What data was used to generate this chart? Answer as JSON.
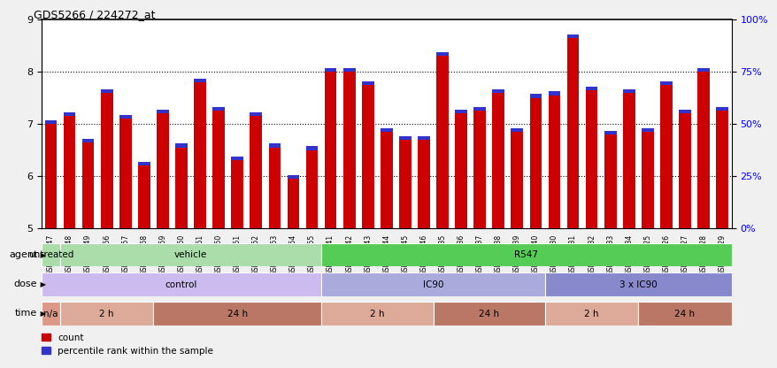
{
  "title": "GDS5266 / 224272_at",
  "samples": [
    "GSM386247",
    "GSM386248",
    "GSM386249",
    "GSM386256",
    "GSM386257",
    "GSM386258",
    "GSM386259",
    "GSM386260",
    "GSM386261",
    "GSM386250",
    "GSM386251",
    "GSM386252",
    "GSM386253",
    "GSM386254",
    "GSM386255",
    "GSM386241",
    "GSM386242",
    "GSM386243",
    "GSM386244",
    "GSM386245",
    "GSM386246",
    "GSM386235",
    "GSM386236",
    "GSM386237",
    "GSM386238",
    "GSM386239",
    "GSM386240",
    "GSM386230",
    "GSM386231",
    "GSM386232",
    "GSM386233",
    "GSM386234",
    "GSM386225",
    "GSM386226",
    "GSM386227",
    "GSM386228",
    "GSM386229"
  ],
  "red_values": [
    7.0,
    7.15,
    6.65,
    7.6,
    7.1,
    6.2,
    7.2,
    6.55,
    7.8,
    7.25,
    6.3,
    7.15,
    6.55,
    5.95,
    6.5,
    8.0,
    8.0,
    7.75,
    6.85,
    6.7,
    6.7,
    8.3,
    7.2,
    7.25,
    7.6,
    6.85,
    7.5,
    7.55,
    8.65,
    7.65,
    6.8,
    7.6,
    6.85,
    7.75,
    7.2,
    8.0,
    7.25
  ],
  "blue_heights": [
    0.07,
    0.07,
    0.07,
    0.07,
    0.07,
    0.07,
    0.07,
    0.07,
    0.07,
    0.07,
    0.07,
    0.07,
    0.07,
    0.07,
    0.07,
    0.07,
    0.07,
    0.07,
    0.07,
    0.07,
    0.07,
    0.07,
    0.07,
    0.07,
    0.07,
    0.07,
    0.07,
    0.07,
    0.07,
    0.07,
    0.07,
    0.07,
    0.07,
    0.07,
    0.07,
    0.07,
    0.07
  ],
  "ymin": 5.0,
  "ymax": 9.0,
  "yticks": [
    5,
    6,
    7,
    8,
    9
  ],
  "y2ticks": [
    0,
    25,
    50,
    75,
    100
  ],
  "y2labels": [
    "0%",
    "25%",
    "50%",
    "75%",
    "100%"
  ],
  "bar_color": "#cc0000",
  "blue_color": "#3333cc",
  "background_color": "#f0f0f0",
  "plot_bg_color": "#ffffff",
  "agent_row": {
    "segments": [
      {
        "text": "untreated",
        "start": 0,
        "end": 1,
        "color": "#aaddaa"
      },
      {
        "text": "vehicle",
        "start": 1,
        "end": 15,
        "color": "#aaddaa"
      },
      {
        "text": "R547",
        "start": 15,
        "end": 37,
        "color": "#55cc55"
      }
    ]
  },
  "dose_row": {
    "segments": [
      {
        "text": "control",
        "start": 0,
        "end": 15,
        "color": "#ccbbee"
      },
      {
        "text": "IC90",
        "start": 15,
        "end": 27,
        "color": "#aaaadd"
      },
      {
        "text": "3 x IC90",
        "start": 27,
        "end": 37,
        "color": "#8888cc"
      }
    ]
  },
  "time_row": {
    "segments": [
      {
        "text": "n/a",
        "start": 0,
        "end": 1,
        "color": "#dd9988"
      },
      {
        "text": "2 h",
        "start": 1,
        "end": 6,
        "color": "#ddaa99"
      },
      {
        "text": "24 h",
        "start": 6,
        "end": 15,
        "color": "#bb7766"
      },
      {
        "text": "2 h",
        "start": 15,
        "end": 21,
        "color": "#ddaa99"
      },
      {
        "text": "24 h",
        "start": 21,
        "end": 27,
        "color": "#bb7766"
      },
      {
        "text": "2 h",
        "start": 27,
        "end": 32,
        "color": "#ddaa99"
      },
      {
        "text": "24 h",
        "start": 32,
        "end": 37,
        "color": "#bb7766"
      }
    ]
  }
}
